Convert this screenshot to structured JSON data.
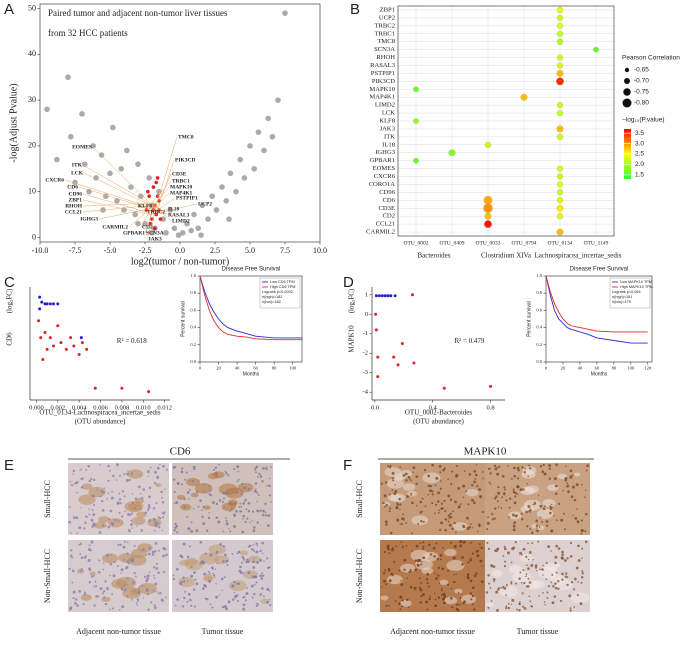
{
  "chart_data": [
    {
      "type": "scatter",
      "panel": "A",
      "title": "Paired tumor and adjacent non-tumor liver tissues",
      "subtitle": "from 32 HCC patients",
      "xlabel": "log2(tumor / non-tumor)",
      "ylabel": "-log(Adjust Pvalue)",
      "xlim": [
        -10,
        10
      ],
      "ylim": [
        -1,
        51
      ],
      "xticks": [
        {
          "value": -10,
          "label": "-10.0"
        },
        -7.5,
        {
          "value": -5,
          "label": "-5.0"
        },
        -2.5,
        {
          "value": 0,
          "label": "0.0"
        },
        2.5,
        {
          "value": 5,
          "label": "5.0"
        },
        7.5,
        {
          "value": 10,
          "label": "10.0"
        }
      ],
      "yticks": [
        0,
        10,
        20,
        30,
        40,
        50
      ],
      "series": [
        {
          "color": "#ababab",
          "x": [
            -9.5,
            -8.8,
            -8.0,
            -7.8,
            -7.5,
            -7.0,
            -6.8,
            -6.5,
            -6.2,
            -6.0,
            -5.6,
            -5.3,
            -5.0,
            -4.8,
            -4.5,
            -4.2,
            -4.0,
            -3.8,
            -3.5,
            -3.2,
            -3.0,
            -2.8,
            -2.5,
            -2.2,
            -2.0,
            -1.8,
            -1.5,
            -1.2,
            -1.0,
            -0.7,
            -0.4,
            -0.1,
            0.2,
            0.5,
            0.8,
            1.0,
            1.3,
            1.6,
            2.0,
            2.3,
            2.6,
            3.0,
            3.3,
            3.6,
            4.0,
            4.3,
            4.6,
            5.0,
            5.3,
            5.6,
            6.0,
            6.3,
            6.6,
            7.0,
            7.5,
            -3.0,
            -2.0,
            1.5,
            3.5,
            -5.5
          ],
          "values": [
            28,
            17,
            35,
            22,
            12,
            27,
            16,
            10,
            20,
            13,
            18,
            9,
            14,
            24,
            8,
            15,
            6,
            19,
            11,
            5,
            16,
            9,
            3,
            13,
            7,
            2,
            10,
            4,
            1,
            6,
            2,
            0.5,
            1,
            3,
            1.5,
            5,
            2,
            7,
            4,
            9,
            6,
            11,
            8,
            14,
            10,
            17,
            13,
            20,
            15,
            23,
            19,
            26,
            22,
            30,
            49,
            3,
            1,
            0.5,
            4,
            6
          ]
        },
        {
          "color": "#e01e1e",
          "x": [
            -2.4,
            -2.2,
            -2.0,
            -1.9,
            -1.8,
            -1.7,
            -1.6,
            -1.5,
            -2.1,
            -1.9,
            -1.6,
            -1.4,
            -2.3,
            -1.8,
            -1.7,
            -1.5
          ],
          "values": [
            6,
            9,
            4,
            11,
            7,
            5,
            13,
            8,
            3,
            6,
            9,
            4,
            10,
            2,
            12,
            6
          ]
        }
      ],
      "gene_labels": [
        "EOMES",
        "ITK",
        "LCK",
        "CXCR6",
        "CD6",
        "CD96",
        "ZBP1",
        "RHOH",
        "CCL21",
        "IGHG3",
        "CARMIL2",
        "GPBAR1",
        "TMC8",
        "PIK3CD",
        "CD3E",
        "TRBC1",
        "MAPK10",
        "MAP4K1",
        "PSTPIP1",
        "UCP2",
        "IL18",
        "RASAL3",
        "LIMD2",
        "KLF8",
        "TRBC2",
        "CD2",
        "SCN3A",
        "JAK3"
      ]
    },
    {
      "type": "dot",
      "panel": "B",
      "y_categories": [
        "ZBP1",
        "UCP2",
        "TRBC2",
        "TRBC1",
        "TMC8",
        "SCN3A",
        "RHOH",
        "RASAL3",
        "PSTPIP1",
        "PIK3CD",
        "MAPK10",
        "MAP4K1",
        "LIMD2",
        "LCK",
        "KLF8",
        "JAK3",
        "ITK",
        "IL18",
        "IGHG3",
        "GPBAR1",
        "EOMES",
        "CXCR6",
        "CORO1A",
        "CD96",
        "CD6",
        "CD3E",
        "CD2",
        "CCL21",
        "CARMIL2"
      ],
      "x_categories": [
        "OTU_0002",
        "OTU_0409",
        "OTU_0033",
        "OTU_0794",
        "OTU_0134",
        "OTU_1149"
      ],
      "x_groups": [
        "Bacteroides",
        "Bacteroides",
        "Clostridium XIVa",
        "Clostridium XIVa",
        "Lachnospiracea_incertae_sedis",
        "Lachnospiracea_incertae_sedis"
      ],
      "points": [
        {
          "x": "OTU_0134",
          "y": "ZBP1",
          "r": -0.7,
          "logp": 2.4
        },
        {
          "x": "OTU_0134",
          "y": "UCP2",
          "r": -0.7,
          "logp": 2.2
        },
        {
          "x": "OTU_0134",
          "y": "TRBC2",
          "r": -0.7,
          "logp": 2.3
        },
        {
          "x": "OTU_0134",
          "y": "TRBC1",
          "r": -0.7,
          "logp": 2.2
        },
        {
          "x": "OTU_0134",
          "y": "TMC8",
          "r": -0.7,
          "logp": 2.0
        },
        {
          "x": "OTU_1149",
          "y": "SCN3A",
          "r": -0.68,
          "logp": 1.6
        },
        {
          "x": "OTU_0134",
          "y": "RHOH",
          "r": -0.7,
          "logp": 2.2
        },
        {
          "x": "OTU_0134",
          "y": "RASAL3",
          "r": -0.7,
          "logp": 2.3
        },
        {
          "x": "OTU_0134",
          "y": "PSTPIP1",
          "r": -0.72,
          "logp": 2.8
        },
        {
          "x": "OTU_0134",
          "y": "PIK3CD",
          "r": -0.75,
          "logp": 3.5
        },
        {
          "x": "OTU_0002",
          "y": "MAPK10",
          "r": -0.68,
          "logp": 1.6
        },
        {
          "x": "OTU_0794",
          "y": "MAP4K1",
          "r": -0.72,
          "logp": 2.8
        },
        {
          "x": "OTU_0134",
          "y": "LIMD2",
          "r": -0.7,
          "logp": 2.2
        },
        {
          "x": "OTU_0134",
          "y": "LCK",
          "r": -0.7,
          "logp": 2.2
        },
        {
          "x": "OTU_0002",
          "y": "KLF8",
          "r": -0.68,
          "logp": 1.9
        },
        {
          "x": "OTU_0134",
          "y": "JAK3",
          "r": -0.72,
          "logp": 2.8
        },
        {
          "x": "OTU_0134",
          "y": "ITK",
          "r": -0.7,
          "logp": 2.2
        },
        {
          "x": "OTU_0033",
          "y": "IL18",
          "r": -0.7,
          "logp": 2.2
        },
        {
          "x": "OTU_0409",
          "y": "IGHG3",
          "r": -0.72,
          "logp": 1.8
        },
        {
          "x": "OTU_0002",
          "y": "GPBAR1",
          "r": -0.68,
          "logp": 1.6
        },
        {
          "x": "OTU_0134",
          "y": "EOMES",
          "r": -0.7,
          "logp": 2.2
        },
        {
          "x": "OTU_0134",
          "y": "CXCR6",
          "r": -0.7,
          "logp": 2.2
        },
        {
          "x": "OTU_0134",
          "y": "CORO1A",
          "r": -0.7,
          "logp": 2.3
        },
        {
          "x": "OTU_0134",
          "y": "CD96",
          "r": -0.7,
          "logp": 2.2
        },
        {
          "x": "OTU_0033",
          "y": "CD6",
          "r": -0.78,
          "logp": 2.9
        },
        {
          "x": "OTU_0134",
          "y": "CD6",
          "r": -0.7,
          "logp": 2.3
        },
        {
          "x": "OTU_0033",
          "y": "CD3E",
          "r": -0.8,
          "logp": 3.0
        },
        {
          "x": "OTU_0134",
          "y": "CD3E",
          "r": -0.72,
          "logp": 2.6
        },
        {
          "x": "OTU_0033",
          "y": "CD2",
          "r": -0.72,
          "logp": 2.8
        },
        {
          "x": "OTU_0134",
          "y": "CD2",
          "r": -0.7,
          "logp": 2.3
        },
        {
          "x": "OTU_0033",
          "y": "CCL21",
          "r": -0.75,
          "logp": 3.6
        },
        {
          "x": "OTU_0134",
          "y": "CARMIL2",
          "r": -0.72,
          "logp": 2.8
        }
      ],
      "size_legend": {
        "title": "Pearson Correlation",
        "values": [
          -0.65,
          {
            "value": -0.7,
            "label": "-0.70"
          },
          -0.75,
          {
            "value": -0.8,
            "label": "-0.80"
          }
        ]
      },
      "color_legend": {
        "title": "−log₁₀(P.value)",
        "lim": [
          1.3,
          3.7
        ],
        "colors": [
          "#33ff33",
          "#ffff00",
          "#ff0000"
        ],
        "ticks": [
          1.5,
          {
            "value": 2,
            "label": "2.0"
          },
          2.5,
          {
            "value": 3,
            "label": "3.0"
          },
          3.5
        ]
      }
    },
    {
      "type": "scatter",
      "panel": "C",
      "ylabel": "CD6",
      "ylabel_unit": "(log₂FC)",
      "xlabel": "OTU_0134-Lachnospiracea_incertae_sedis",
      "xlabel_unit": "(OTU abundance)",
      "annotation": "R² = 0.618",
      "xlim": [
        -0.0006,
        0.0125
      ],
      "ylim": [
        -5.2,
        1.5
      ],
      "xticks": [
        {
          "value": 0,
          "label": "0.000"
        },
        {
          "value": 0.002,
          "label": "0.002"
        },
        {
          "value": 0.004,
          "label": "0.004"
        },
        {
          "value": 0.006,
          "label": "0.006"
        },
        {
          "value": 0.008,
          "label": "0.008"
        },
        {
          "value": 0.01,
          "label": "0.010"
        },
        {
          "value": 0.012,
          "label": "0.012"
        }
      ],
      "series": [
        {
          "color": "#2222cc",
          "x": [
            0.0003,
            0.0005,
            0.0008,
            0.001,
            0.0013,
            0.0016,
            0.002,
            0.0042,
            0.0003
          ],
          "values": [
            0.9,
            0.6,
            0.5,
            0.5,
            0.5,
            0.5,
            0.5,
            -1.5,
            0.2
          ]
        },
        {
          "color": "#dd2222",
          "x": [
            0.0002,
            0.0004,
            0.0006,
            0.0008,
            0.001,
            0.0013,
            0.0016,
            0.002,
            0.0023,
            0.0028,
            0.0032,
            0.0035,
            0.004,
            0.0043,
            0.0047,
            0.0055,
            0.008,
            0.0105
          ],
          "values": [
            -0.5,
            -1.5,
            -2.8,
            -1.2,
            -2.2,
            -1.5,
            -2.0,
            -0.8,
            -1.8,
            -2.2,
            -1.5,
            -2.0,
            -2.5,
            -1.8,
            -2.2,
            -4.5,
            -4.5,
            -4.7
          ]
        }
      ]
    },
    {
      "type": "line",
      "title": "Disease Free Survival",
      "xlabel": "Months",
      "ylabel": "Percent survival",
      "xlim": [
        0,
        110
      ],
      "ylim": [
        0,
        1
      ],
      "xticks": [
        0,
        20,
        40,
        60,
        80,
        100
      ],
      "yticks": [
        {
          "value": 0,
          "label": "0.0"
        },
        0.2,
        0.4,
        0.6,
        0.8,
        {
          "value": 1,
          "label": "1.0"
        }
      ],
      "stats": [
        "Logrank p=0.0092",
        "n(high)=182",
        "n(low)=182"
      ],
      "series": [
        {
          "name": "Low CD6 TPM",
          "color": "#2b2bd6",
          "x": [
            0,
            5,
            10,
            15,
            20,
            25,
            30,
            40,
            50,
            60,
            80,
            100,
            110
          ],
          "values": [
            1,
            0.82,
            0.68,
            0.58,
            0.5,
            0.44,
            0.4,
            0.36,
            0.33,
            0.3,
            0.28,
            0.28,
            0.28
          ]
        },
        {
          "name": "High CD6 TPM",
          "color": "#e02a2a",
          "x": [
            0,
            5,
            10,
            15,
            20,
            25,
            30,
            40,
            50,
            60,
            80,
            100,
            110
          ],
          "values": [
            1,
            0.78,
            0.6,
            0.48,
            0.4,
            0.35,
            0.32,
            0.3,
            0.29,
            0.27,
            0.26,
            0.26,
            0.26
          ]
        }
      ]
    },
    {
      "type": "scatter",
      "panel": "D",
      "ylabel": "MAPK10",
      "ylabel_unit": "(log₂FC)",
      "xlabel": "OTU_0002-Bacteroides",
      "xlabel_unit": "(OTU abundance)",
      "annotation": "R² = 0.479",
      "xlim": [
        -0.02,
        0.9
      ],
      "ylim": [
        -4.4,
        1.4
      ],
      "xticks": [
        {
          "value": 0,
          "label": "0.0"
        },
        0.4,
        0.8
      ],
      "yticks": [
        1,
        0,
        -1,
        -2,
        -3,
        -4
      ],
      "series": [
        {
          "color": "#2222cc",
          "x": [
            0.01,
            0.03,
            0.05,
            0.07,
            0.09,
            0.11,
            0.14
          ],
          "values": [
            0.95,
            0.95,
            0.95,
            0.95,
            0.95,
            0.95,
            0.95
          ]
        },
        {
          "color": "#dd2222",
          "x": [
            0.005,
            0.01,
            0.02,
            0.02,
            0.13,
            0.16,
            0.19,
            0.26,
            0.27,
            0.48,
            0.8
          ],
          "values": [
            0,
            -0.8,
            -2.2,
            -3.2,
            -2.2,
            -2.6,
            -1.5,
            1,
            -2.5,
            -3.8,
            -3.7
          ]
        }
      ]
    },
    {
      "type": "line",
      "title": "Disease Free Survival",
      "xlabel": "Months",
      "ylabel": "Percent survival",
      "xlim": [
        0,
        125
      ],
      "ylim": [
        0,
        1
      ],
      "xticks": [
        0,
        20,
        40,
        60,
        80,
        100,
        120
      ],
      "yticks": [
        {
          "value": 0,
          "label": "0.0"
        },
        0.2,
        0.4,
        0.6,
        0.8,
        {
          "value": 1,
          "label": "1.0"
        }
      ],
      "stats": [
        "Logrank p=0.064",
        "n(high)=181",
        "n(low)=179"
      ],
      "series": [
        {
          "name": "Low MAPK10 TPM",
          "color": "#2b2bd6",
          "x": [
            0,
            5,
            10,
            15,
            20,
            25,
            30,
            40,
            50,
            60,
            80,
            100,
            120
          ],
          "values": [
            1,
            0.78,
            0.6,
            0.5,
            0.45,
            0.4,
            0.38,
            0.35,
            0.32,
            0.28,
            0.25,
            0.22,
            0.22
          ]
        },
        {
          "name": "High MAPK10 TPM",
          "color": "#e02a2a",
          "x": [
            0,
            5,
            10,
            15,
            20,
            25,
            30,
            40,
            50,
            60,
            80,
            100,
            120
          ],
          "values": [
            1,
            0.82,
            0.68,
            0.58,
            0.5,
            0.45,
            0.42,
            0.4,
            0.38,
            0.36,
            0.35,
            0.35,
            0.35
          ]
        }
      ]
    }
  ],
  "ihc_panels": [
    {
      "panel": "E",
      "marker": "CD6",
      "rows": [
        "Small-HCC",
        "Non-Small-HCC"
      ],
      "columns": [
        "Adjacent non-tumor tissue",
        "Tumor tissue"
      ]
    },
    {
      "panel": "F",
      "marker": "MAPK10",
      "rows": [
        "Small-HCC",
        "Non-Small-HCC"
      ],
      "columns": [
        "Adjacent non-tumor tissue",
        "Tumor tissue"
      ]
    }
  ]
}
